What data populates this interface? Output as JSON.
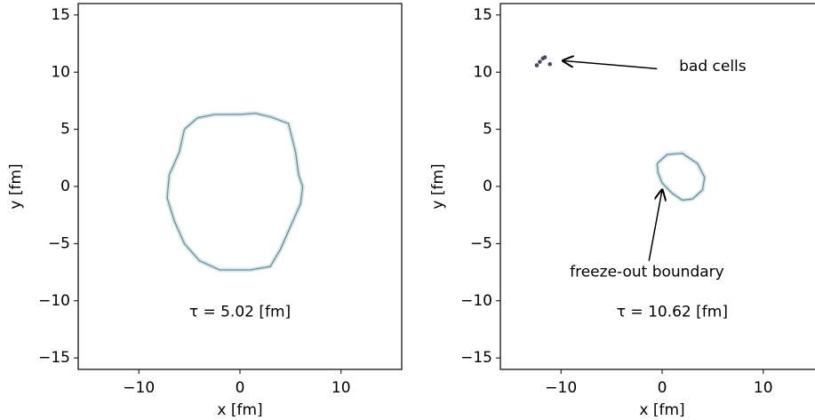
{
  "chart_data": [
    {
      "type": "line",
      "xlabel": "x [fm]",
      "ylabel": "y [fm]",
      "xlim": [
        -16,
        16
      ],
      "ylim": [
        -16,
        16
      ],
      "xticks": [
        {
          "value": -10,
          "label": "−10"
        },
        0,
        10
      ],
      "yticks": [
        {
          "value": -15,
          "label": "−15"
        },
        {
          "value": -10,
          "label": "−10"
        },
        {
          "value": -5,
          "label": "−5"
        },
        0,
        5,
        10,
        15
      ],
      "annotations": [
        "τ =  5.02 [fm]"
      ],
      "series": [
        {
          "color": "#6f8f98",
          "mode": "lines",
          "x": [
            -5.5,
            -4.2,
            -2.5,
            0,
            1.5,
            3,
            4.8,
            5.5,
            5.8,
            6.2,
            6,
            5,
            4,
            3,
            1,
            -2,
            -4,
            -5.5,
            -6.5,
            -7.2,
            -7,
            -6,
            -5.5
          ],
          "y": [
            5,
            6,
            6.3,
            6.3,
            6.4,
            6.1,
            5.5,
            3,
            1,
            0,
            -1.5,
            -3.5,
            -5.5,
            -7,
            -7.3,
            -7.3,
            -6.5,
            -5,
            -3,
            -1,
            1,
            3,
            5
          ]
        }
      ]
    },
    {
      "type": "line",
      "xlabel": "x [fm]",
      "ylabel": "y [fm]",
      "xlim": [
        -16,
        16
      ],
      "ylim": [
        -16,
        16
      ],
      "xticks": [
        {
          "value": -10,
          "label": "−10"
        },
        0,
        10
      ],
      "yticks": [
        {
          "value": -15,
          "label": "−15"
        },
        {
          "value": -10,
          "label": "−10"
        },
        {
          "value": -5,
          "label": "−5"
        },
        0,
        5,
        10,
        15
      ],
      "annotations": [
        "τ =  10.62 [fm]",
        "bad cells",
        "freeze-out boundary"
      ],
      "series": [
        {
          "color": "#6f8f98",
          "mode": "lines",
          "x": [
            -0.5,
            0.5,
            2,
            3.5,
            4.2,
            4,
            3,
            2,
            1,
            0,
            -0.4,
            -0.5
          ],
          "y": [
            2,
            2.8,
            2.9,
            2,
            0.8,
            -0.3,
            -1.1,
            -1.2,
            -0.6,
            0.3,
            1.2,
            2
          ]
        },
        {
          "color": "#4a4a62",
          "mode": "markers",
          "x": [
            -12.4,
            -12.1,
            -11.8,
            -11.6,
            -11.1
          ],
          "y": [
            10.6,
            10.9,
            11.2,
            11.3,
            10.7
          ]
        }
      ]
    }
  ]
}
